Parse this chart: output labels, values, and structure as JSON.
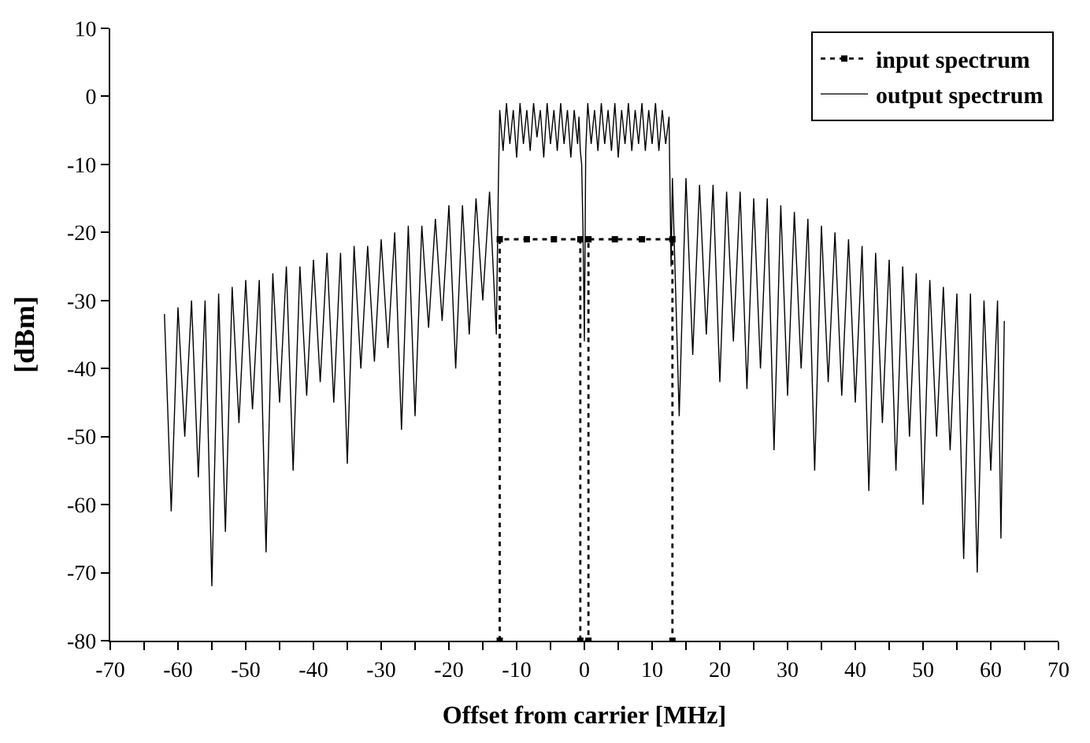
{
  "chart_data": {
    "type": "line",
    "xlabel": "Offset from carrier [MHz]",
    "ylabel": "[dBm]",
    "xlim": [
      -70,
      70
    ],
    "ylim": [
      -80,
      10
    ],
    "xticks": [
      -70,
      {
        "value": -65,
        "label": null
      },
      -60,
      {
        "value": -55,
        "label": null
      },
      -50,
      {
        "value": -45,
        "label": null
      },
      -40,
      {
        "value": -35,
        "label": null
      },
      -30,
      {
        "value": -25,
        "label": null
      },
      -20,
      {
        "value": -15,
        "label": null
      },
      -10,
      {
        "value": -5,
        "label": null
      },
      0,
      {
        "value": 5,
        "label": null
      },
      10,
      {
        "value": 15,
        "label": null
      },
      20,
      {
        "value": 25,
        "label": null
      },
      30,
      {
        "value": 35,
        "label": null
      },
      40,
      {
        "value": 45,
        "label": null
      },
      50,
      {
        "value": 55,
        "label": null
      },
      60,
      {
        "value": 65,
        "label": null
      },
      70
    ],
    "yticks": [
      -80,
      -70,
      -60,
      -50,
      -40,
      -30,
      -20,
      -10,
      0,
      10
    ],
    "legend": "top right",
    "series": [
      {
        "name": "input spectrum",
        "color": "#000000",
        "line_style": "dotted",
        "marker": "square",
        "x": [
          -12.5,
          -12.5,
          -8.5,
          -4.5,
          -0.6,
          -0.6,
          0.6,
          0.6,
          4.5,
          8.5,
          13,
          13
        ],
        "values": [
          -80,
          -21,
          -21,
          -21,
          -21,
          -80,
          -80,
          -21,
          -21,
          -21,
          -21,
          -80
        ]
      },
      {
        "name": "output spectrum",
        "color": "#000000",
        "line_style": "solid",
        "marker": "none",
        "x": [
          -62,
          -61,
          -60,
          -59,
          -58,
          -57,
          -56,
          -55,
          -54,
          -53,
          -52,
          -51,
          -50,
          -49,
          -48,
          -47,
          -46,
          -45,
          -44,
          -43,
          -42,
          -41,
          -40,
          -39,
          -38,
          -37,
          -36,
          -35,
          -34,
          -33,
          -32,
          -31,
          -30,
          -29,
          -28,
          -27,
          -26,
          -25,
          -24,
          -23,
          -22,
          -21,
          -20,
          -19,
          -18,
          -17,
          -16,
          -15,
          -14,
          -13,
          -12.7,
          -12.5,
          -12,
          -11.5,
          -11,
          -10.5,
          -10,
          -9.5,
          -9,
          -8.5,
          -8,
          -7.5,
          -7,
          -6.5,
          -6,
          -5.5,
          -5,
          -4.5,
          -4,
          -3.5,
          -3,
          -2.5,
          -2,
          -1.5,
          -1,
          -0.8,
          -0.6,
          -0.4,
          -0.2,
          0,
          0.2,
          0.5,
          1,
          1.5,
          2,
          2.5,
          3,
          3.5,
          4,
          4.5,
          5,
          5.5,
          6,
          6.5,
          7,
          7.5,
          8,
          8.5,
          9,
          9.5,
          10,
          10.5,
          11,
          11.5,
          12,
          12.5,
          12.8,
          13,
          14,
          15,
          16,
          17,
          18,
          19,
          20,
          21,
          22,
          23,
          24,
          25,
          26,
          27,
          28,
          29,
          30,
          31,
          32,
          33,
          34,
          35,
          36,
          37,
          38,
          39,
          40,
          41,
          42,
          43,
          44,
          45,
          46,
          47,
          48,
          49,
          50,
          51,
          52,
          53,
          54,
          55,
          56,
          57,
          58,
          59,
          60,
          61,
          61.5,
          62
        ],
        "values": [
          -32,
          -61,
          -31,
          -50,
          -30,
          -56,
          -30,
          -72,
          -29,
          -64,
          -28,
          -48,
          -27,
          -46,
          -27,
          -67,
          -26,
          -45,
          -25,
          -55,
          -25,
          -44,
          -24,
          -42,
          -23,
          -45,
          -23,
          -54,
          -22,
          -40,
          -22,
          -39,
          -21,
          -37,
          -20,
          -49,
          -19,
          -47,
          -19,
          -34,
          -18,
          -33,
          -16,
          -40,
          -16,
          -35,
          -15,
          -30,
          -14,
          -35,
          -13,
          -2,
          -8,
          -1,
          -7,
          -2,
          -9,
          -1,
          -7,
          -2,
          -8,
          -1,
          -6,
          -2,
          -9,
          -1,
          -7,
          -2,
          -8,
          -1,
          -7,
          -2,
          -9,
          -2,
          -7,
          -3,
          -8,
          -10,
          -20,
          -36,
          -8,
          -1,
          -7,
          -2,
          -8,
          -1,
          -7,
          -2,
          -8,
          -1,
          -9,
          -2,
          -7,
          -1,
          -8,
          -2,
          -7,
          -1,
          -8,
          -2,
          -7,
          -1,
          -8,
          -2,
          -7,
          -3,
          -25,
          -12,
          -47,
          -12,
          -38,
          -13,
          -35,
          -13,
          -42,
          -14,
          -36,
          -14,
          -43,
          -15,
          -40,
          -15,
          -52,
          -16,
          -44,
          -17,
          -40,
          -18,
          -55,
          -19,
          -42,
          -20,
          -44,
          -21,
          -45,
          -22,
          -58,
          -23,
          -48,
          -24,
          -55,
          -25,
          -50,
          -26,
          -60,
          -27,
          -50,
          -28,
          -52,
          -29,
          -68,
          -29,
          -70,
          -30,
          -55,
          -30,
          -65,
          -33
        ]
      }
    ]
  }
}
